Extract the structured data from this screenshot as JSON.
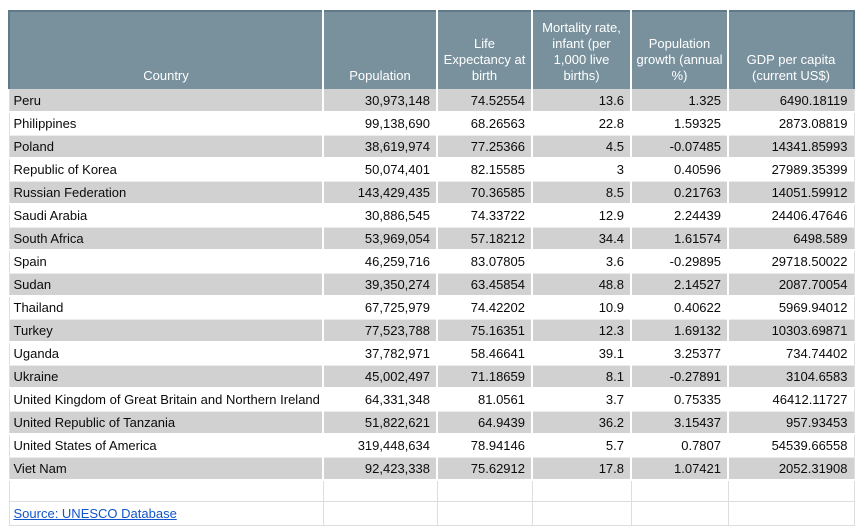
{
  "colors": {
    "header_bg": "#78919D",
    "header_border": "#607B87",
    "header_text": "#FFFFFF",
    "stripe": "#D1D1D1",
    "grid": "#DEDEDE",
    "link": "#1155CC",
    "body_text": "#0B0B0B"
  },
  "chart_data": {
    "type": "table",
    "columns": [
      "Country",
      "Population",
      "Life Expectancy at birth",
      "Mortality rate, infant (per 1,000 live births)",
      "Population growth (annual %)",
      "GDP per capita (current US$)"
    ],
    "rows": [
      [
        "Peru",
        "30,973,148",
        "74.52554",
        "13.6",
        "1.325",
        "6490.18119"
      ],
      [
        "Philippines",
        "99,138,690",
        "68.26563",
        "22.8",
        "1.59325",
        "2873.08819"
      ],
      [
        "Poland",
        "38,619,974",
        "77.25366",
        "4.5",
        "-0.07485",
        "14341.85993"
      ],
      [
        "Republic of Korea",
        "50,074,401",
        "82.15585",
        "3",
        "0.40596",
        "27989.35399"
      ],
      [
        "Russian Federation",
        "143,429,435",
        "70.36585",
        "8.5",
        "0.21763",
        "14051.59912"
      ],
      [
        "Saudi Arabia",
        "30,886,545",
        "74.33722",
        "12.9",
        "2.24439",
        "24406.47646"
      ],
      [
        "South Africa",
        "53,969,054",
        "57.18212",
        "34.4",
        "1.61574",
        "6498.589"
      ],
      [
        "Spain",
        "46,259,716",
        "83.07805",
        "3.6",
        "-0.29895",
        "29718.50022"
      ],
      [
        "Sudan",
        "39,350,274",
        "63.45854",
        "48.8",
        "2.14527",
        "2087.70054"
      ],
      [
        "Thailand",
        "67,725,979",
        "74.42202",
        "10.9",
        "0.40622",
        "5969.94012"
      ],
      [
        "Turkey",
        "77,523,788",
        "75.16351",
        "12.3",
        "1.69132",
        "10303.69871"
      ],
      [
        "Uganda",
        "37,782,971",
        "58.46641",
        "39.1",
        "3.25377",
        "734.74402"
      ],
      [
        "Ukraine",
        "45,002,497",
        "71.18659",
        "8.1",
        "-0.27891",
        "3104.6583"
      ],
      [
        "United Kingdom of Great Britain and Northern Ireland",
        "64,331,348",
        "81.0561",
        "3.7",
        "0.75335",
        "46412.11727"
      ],
      [
        "United Republic of Tanzania",
        "51,822,621",
        "64.9439",
        "36.2",
        "3.15437",
        "957.93453"
      ],
      [
        "United States of America",
        "319,448,634",
        "78.94146",
        "5.7",
        "0.7807",
        "54539.66558"
      ],
      [
        "Viet Nam",
        "92,423,338",
        "75.62912",
        "17.8",
        "1.07421",
        "2052.31908"
      ]
    ],
    "source": "Source: UNESCO Database"
  }
}
